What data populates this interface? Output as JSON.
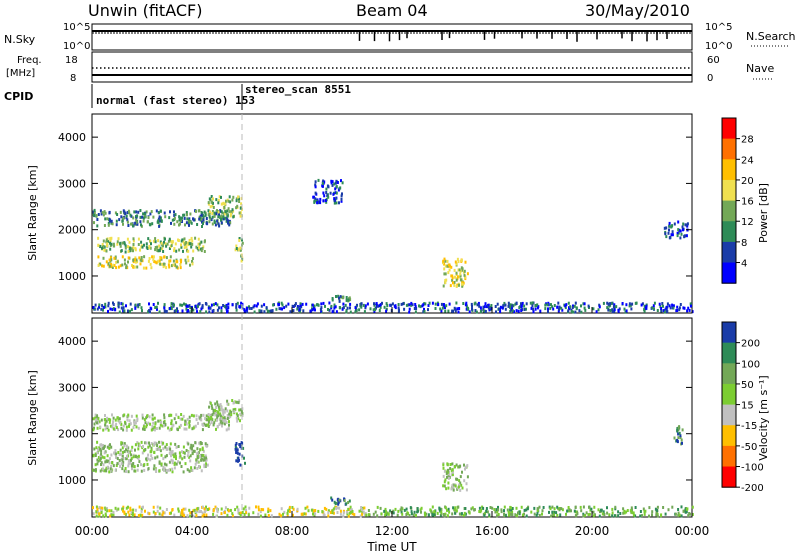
{
  "header": {
    "station": "Unwin (fitACF)",
    "beam": "Beam 04",
    "date": "30/May/2010"
  },
  "sky_panel": {
    "left_label": "N.Sky",
    "right_label": "N.Search",
    "left_ticks": [
      "10^5",
      "10^0"
    ],
    "right_ticks": [
      "10^5",
      "10^0"
    ],
    "search_spikes_hours": [
      10.7,
      11.3,
      11.9,
      12.3,
      12.6,
      14.0,
      14.3,
      15.7,
      16.1,
      17.2,
      17.8,
      18.4,
      19.0,
      19.4,
      20.2,
      21.2,
      21.6,
      22.2,
      22.6,
      23.0
    ]
  },
  "freq_panel": {
    "left_label_1": "Freq.",
    "left_label_2": "[MHz]",
    "right_label": "Nave",
    "left_ticks": [
      "18",
      "8"
    ],
    "right_ticks": [
      "60",
      "0"
    ]
  },
  "cpid_panel": {
    "label": "CPID",
    "mode_1": "normal (fast stereo) 153",
    "mode_2": "stereo_scan 8551",
    "switch_hour": 6.0
  },
  "chart_data": [
    {
      "type": "heatmap",
      "name": "power",
      "colorbar_label": "Power [dB]",
      "colorbar_ticks": [
        "28",
        "24",
        "20",
        "16",
        "12",
        "8",
        "4"
      ],
      "colorbar_colors": [
        "#ff0000",
        "#ff7000",
        "#ffbf00",
        "#f0e050",
        "#73a857",
        "#2e8b57",
        "#1a3ca8",
        "#0000ff"
      ],
      "ylabel": "Slant Range [km]",
      "yticks": [
        1000,
        2000,
        3000,
        4000
      ],
      "ylim": [
        200,
        4500
      ],
      "xlim": [
        0,
        24
      ],
      "echo_regions": [
        {
          "t0": 0.0,
          "t1": 5.5,
          "r0": 2100,
          "r1": 2450,
          "level": 2
        },
        {
          "t0": 0.2,
          "t1": 4.6,
          "r0": 1550,
          "r1": 1850,
          "level": 3
        },
        {
          "t0": 0.2,
          "t1": 4.0,
          "r0": 1200,
          "r1": 1450,
          "level": 4
        },
        {
          "t0": 4.6,
          "t1": 6.0,
          "r0": 2300,
          "r1": 2750,
          "level": 3
        },
        {
          "t0": 5.7,
          "t1": 6.0,
          "r0": 1350,
          "r1": 1850,
          "level": 3
        },
        {
          "t0": 14.0,
          "t1": 15.0,
          "r0": 800,
          "r1": 1400,
          "level": 4
        },
        {
          "t0": 8.8,
          "t1": 10.0,
          "r0": 2600,
          "r1": 3100,
          "level": 1
        },
        {
          "t0": 22.8,
          "t1": 23.8,
          "r0": 1850,
          "r1": 2200,
          "level": 1
        },
        {
          "t0": 9.5,
          "t1": 10.3,
          "r0": 480,
          "r1": 650,
          "level": 2
        },
        {
          "t0": 0.0,
          "t1": 24.0,
          "r0": 250,
          "r1": 450,
          "level": 1
        }
      ]
    },
    {
      "type": "heatmap",
      "name": "velocity",
      "colorbar_label": "Velocity [m s⁻¹]",
      "colorbar_ticks": [
        "200",
        "100",
        "50",
        "15",
        "-15",
        "-50",
        "-100",
        "-200"
      ],
      "colorbar_colors": [
        "#1a3ca8",
        "#2e8b57",
        "#73a857",
        "#7ccd32",
        "#c0c0c0",
        "#ffbf00",
        "#ff7000",
        "#ff0000"
      ],
      "ylabel": "Slant Range [km]",
      "yticks": [
        1000,
        2000,
        3000,
        4000
      ],
      "ylim": [
        200,
        4500
      ],
      "xlim": [
        0,
        24
      ],
      "xlabel": "Time UT",
      "xticks": [
        "00:00",
        "04:00",
        "08:00",
        "12:00",
        "16:00",
        "20:00",
        "00:00"
      ],
      "echo_regions": [
        {
          "t0": 0.0,
          "t1": 5.5,
          "r0": 2100,
          "r1": 2450,
          "level": 4
        },
        {
          "t0": 0.0,
          "t1": 4.6,
          "r0": 1200,
          "r1": 1850,
          "level": 4
        },
        {
          "t0": 4.6,
          "t1": 6.0,
          "r0": 2300,
          "r1": 2750,
          "level": 4
        },
        {
          "t0": 5.7,
          "t1": 6.1,
          "r0": 1300,
          "r1": 1850,
          "level": 7
        },
        {
          "t0": 14.0,
          "t1": 15.0,
          "r0": 800,
          "r1": 1400,
          "level": 4
        },
        {
          "t0": 9.5,
          "t1": 10.3,
          "r0": 480,
          "r1": 650,
          "level": 6
        },
        {
          "t0": 23.2,
          "t1": 23.6,
          "r0": 1800,
          "r1": 2200,
          "level": 6
        },
        {
          "t0": 11.0,
          "t1": 24.0,
          "r0": 250,
          "r1": 450,
          "level": 5
        },
        {
          "t0": 0.0,
          "t1": 11.0,
          "r0": 250,
          "r1": 450,
          "level": 3
        }
      ]
    }
  ]
}
